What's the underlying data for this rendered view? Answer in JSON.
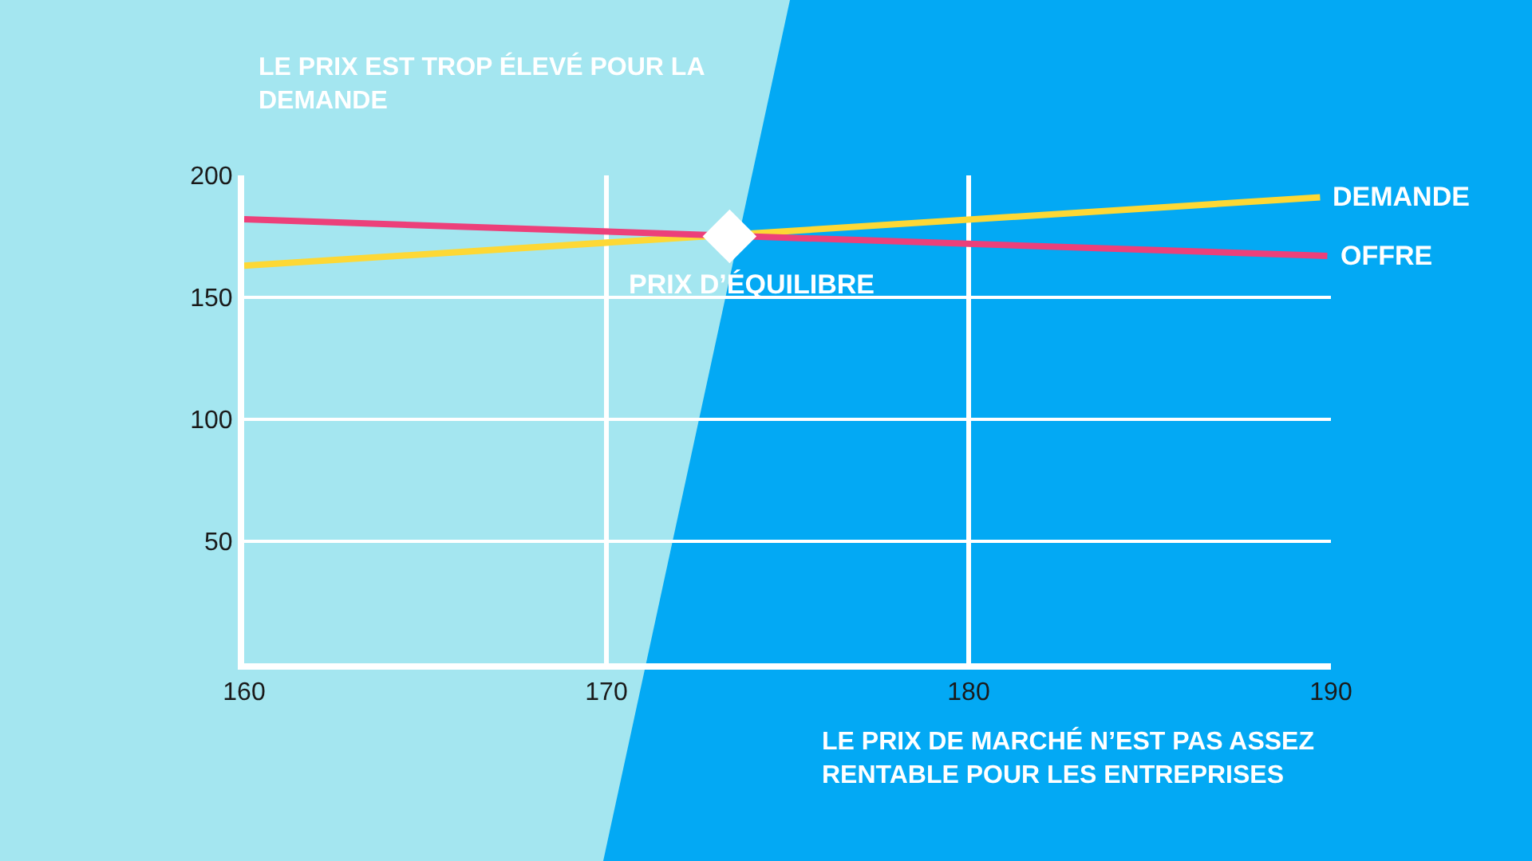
{
  "chart_data": {
    "type": "line",
    "annotations": [
      "LE PRIX EST TROP ÉLEVÉ POUR LA DEMANDE",
      "LE PRIX DE MARCHÉ N’EST PAS ASSEZ RENTABLE POUR LES ENTREPRISES"
    ],
    "series": [
      {
        "name": "DEMANDE",
        "color": "#fdd835",
        "x": [
          160,
          189.7
        ],
        "values": [
          163,
          191
        ]
      },
      {
        "name": "OFFRE",
        "color": "#ec407a",
        "x": [
          160,
          189.9
        ],
        "values": [
          182,
          167
        ]
      },
      {
        "name": "PRIX D’ÉQUILIBRE",
        "type": "scatter",
        "marker": "diamond",
        "color": "#ffffff",
        "x": [
          173.4
        ],
        "values": [
          175
        ]
      }
    ],
    "xlim": [
      160,
      190
    ],
    "ylim": [
      0,
      200
    ],
    "xticks": [
      160,
      170,
      180,
      190
    ],
    "yticks": [
      50,
      100,
      150,
      200
    ],
    "grid": true,
    "legend": false,
    "line_style": "solid"
  }
}
